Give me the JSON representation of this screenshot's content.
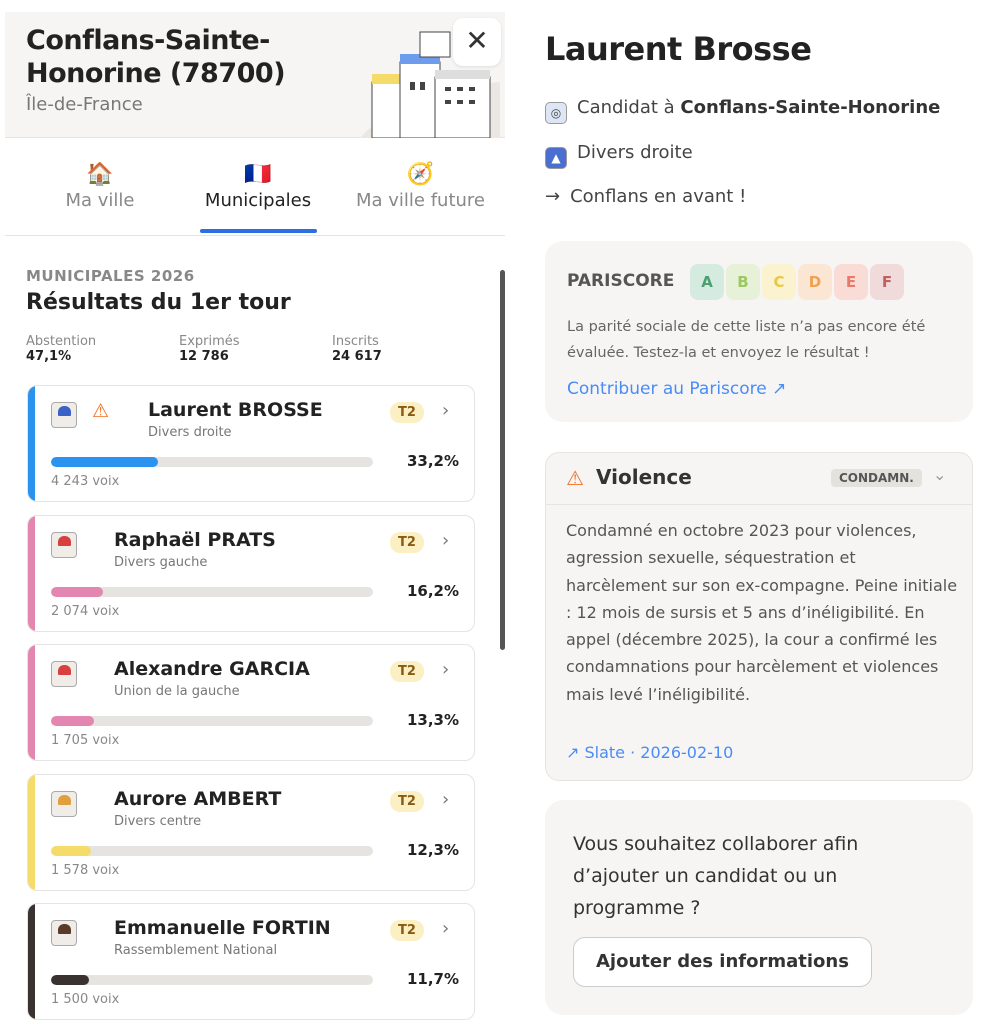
{
  "city": {
    "name": "Conflans-Sainte-Honorine (78700)",
    "region": "Île-de-France"
  },
  "tabs": [
    {
      "label": "Ma ville",
      "icon": "house-icon"
    },
    {
      "label": "Municipales",
      "icon": "flag-france-icon"
    },
    {
      "label": "Ma ville future",
      "icon": "compass-icon"
    }
  ],
  "results": {
    "section": "MUNICIPALES 2026",
    "title": "Résultats du 1er tour",
    "stats": [
      {
        "label": "Abstention",
        "value": "47,1%"
      },
      {
        "label": "Exprimés",
        "value": "12 786"
      },
      {
        "label": "Inscrits",
        "value": "24 617"
      }
    ],
    "candidates": [
      {
        "name": "Laurent BROSSE",
        "party": "Divers droite",
        "badge": "T2",
        "pct": "33,2%",
        "share": 33.2,
        "votes": "4 243 voix",
        "color": "#2a93f0",
        "warning": true
      },
      {
        "name": "Raphaël PRATS",
        "party": "Divers gauche",
        "badge": "T2",
        "pct": "16,2%",
        "share": 16.2,
        "votes": "2 074 voix",
        "color": "#e487b0",
        "warning": false
      },
      {
        "name": "Alexandre GARCIA",
        "party": "Union de la gauche",
        "badge": "T2",
        "pct": "13,3%",
        "share": 13.3,
        "votes": "1 705 voix",
        "color": "#e487b0",
        "warning": false
      },
      {
        "name": "Aurore AMBERT",
        "party": "Divers centre",
        "badge": "T2",
        "pct": "12,3%",
        "share": 12.3,
        "votes": "1 578 voix",
        "color": "#f5dc6a",
        "warning": false
      },
      {
        "name": "Emmanuelle FORTIN",
        "party": "Rassemblement National",
        "badge": "T2",
        "pct": "11,7%",
        "share": 11.7,
        "votes": "1 500 voix",
        "color": "#3a3230",
        "warning": false
      }
    ]
  },
  "detail": {
    "name": "Laurent Brosse",
    "candidate_prefix": "Candidat à ",
    "candidate_city": "Conflans-Sainte-Honorine",
    "party": "Divers droite",
    "list_arrow": "→",
    "list_name": "Conflans en avant !"
  },
  "pariscore": {
    "label": "PARISCORE",
    "grades": [
      "A",
      "B",
      "C",
      "D",
      "E",
      "F"
    ],
    "text": "La parité sociale de cette liste n’a pas encore été évaluée. Testez-la et envoyez le résultat !",
    "link": "Contribuer au Pariscore"
  },
  "violence": {
    "title": "Violence",
    "badge": "CONDAMN.",
    "text": "Condamné en octobre 2023 pour violences, agression sexuelle, séquestration et harcèlement sur son ex-compagne. Peine initiale : 12 mois de sursis et 5 ans d’inéligibilité. En appel (décembre 2025), la cour a confirmé les condamnations pour harcèlement et violences mais levé l’inéligibilité.",
    "source": "Slate · 2026-02-10"
  },
  "collab": {
    "question": "Vous souhaitez collaborer afin d’ajouter un candidat ou un programme ?",
    "button": "Ajouter des informations"
  }
}
